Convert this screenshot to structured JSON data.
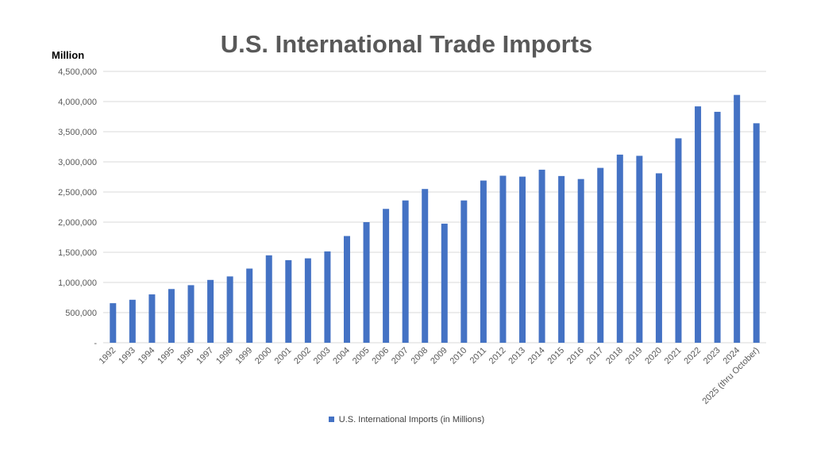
{
  "chart_data": {
    "type": "bar",
    "title": "U.S. International Trade Imports",
    "ylabel": "Million",
    "xlabel": "",
    "categories": [
      "1992",
      "1993",
      "1994",
      "1995",
      "1996",
      "1997",
      "1998",
      "1999",
      "2000",
      "2001",
      "2002",
      "2003",
      "2004",
      "2005",
      "2006",
      "2007",
      "2008",
      "2009",
      "2010",
      "2011",
      "2012",
      "2013",
      "2014",
      "2015",
      "2016",
      "2017",
      "2018",
      "2019",
      "2020",
      "2021",
      "2022",
      "2023",
      "2024",
      "2025 (thru October)"
    ],
    "series": [
      {
        "name": "U.S. International Imports (in Millions)",
        "values": [
          656000,
          713000,
          802000,
          891000,
          955000,
          1042000,
          1100000,
          1230000,
          1450000,
          1370000,
          1400000,
          1515000,
          1770000,
          2000000,
          2220000,
          2360000,
          2550000,
          1975000,
          2360000,
          2690000,
          2770000,
          2755000,
          2870000,
          2765000,
          2715000,
          2900000,
          3120000,
          3100000,
          2810000,
          3390000,
          3920000,
          3830000,
          4110000,
          3640000
        ]
      }
    ],
    "ylim": [
      0,
      4500000
    ],
    "yticks": [
      0,
      500000,
      1000000,
      1500000,
      2000000,
      2500000,
      3000000,
      3500000,
      4000000,
      4500000
    ],
    "ytick_labels": [
      "-",
      "500,000",
      "1,000,000",
      "1,500,000",
      "2,000,000",
      "2,500,000",
      "3,000,000",
      "3,500,000",
      "4,000,000",
      "4,500,000"
    ],
    "grid": true,
    "legend_position": "bottom",
    "colors": {
      "bar": "#4472C4",
      "grid": "#D9D9D9",
      "tick_text": "#595959"
    }
  }
}
